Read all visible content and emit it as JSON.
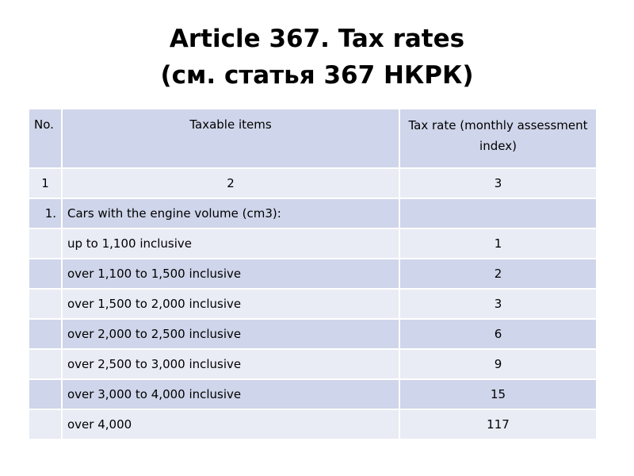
{
  "title": {
    "line1": "Article 367. Tax rates",
    "line2": "(см. статья 367 НКРК)"
  },
  "table": {
    "headers": {
      "no": "No.",
      "items": "Taxable items",
      "rate": "Tax rate (monthly assessment index)"
    },
    "numbering_row": [
      "1",
      "2",
      "3"
    ],
    "section": {
      "no": "1.",
      "item": "Cars with the engine volume (cm3):",
      "rate": ""
    },
    "rows": [
      {
        "no": "",
        "item": "up to 1,100 inclusive",
        "rate": "1"
      },
      {
        "no": "",
        "item": "over 1,100 to 1,500 inclusive",
        "rate": "2"
      },
      {
        "no": "",
        "item": "over 1,500 to 2,000 inclusive",
        "rate": "3"
      },
      {
        "no": "",
        "item": "over 2,000 to 2,500 inclusive",
        "rate": "6"
      },
      {
        "no": "",
        "item": "over 2,500 to 3,000 inclusive",
        "rate": "9"
      },
      {
        "no": "",
        "item": "over 3,000 to 4,000 inclusive",
        "rate": "15"
      },
      {
        "no": "",
        "item": "over 4,000",
        "rate": "117"
      }
    ]
  },
  "colors": {
    "header_band": "#cfd5ea",
    "light_band": "#e9ebf5"
  }
}
